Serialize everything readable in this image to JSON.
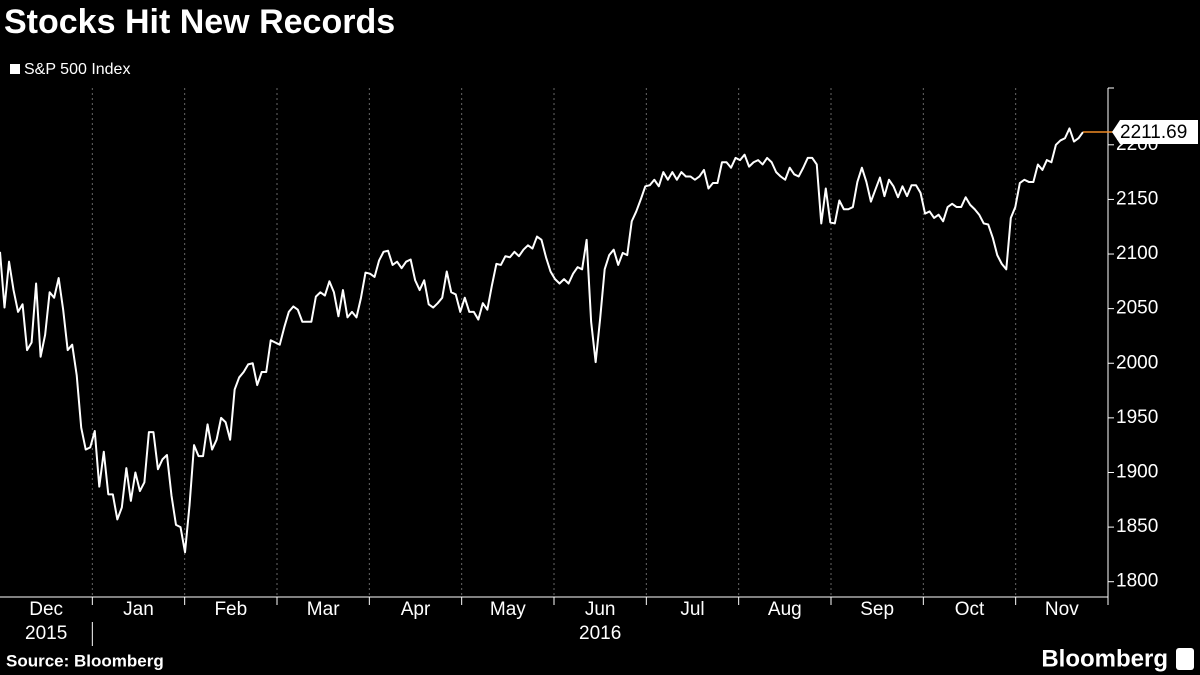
{
  "chart_data": {
    "type": "line",
    "title": "Stocks Hit New Records",
    "series": [
      {
        "name": "S&P 500 Index",
        "color": "#ffffff",
        "values": [
          2102,
          2051,
          2093,
          2067,
          2047,
          2054,
          2012,
          2019,
          2073,
          2006,
          2026,
          2065,
          2060,
          2078,
          2049,
          2012,
          2017,
          1989,
          1941,
          1921,
          1923,
          1938,
          1887,
          1919,
          1880,
          1880,
          1857,
          1868,
          1904,
          1874,
          1900,
          1883,
          1891,
          1937,
          1937,
          1903,
          1912,
          1916,
          1879,
          1852,
          1850,
          1827,
          1870,
          1925,
          1915,
          1915,
          1944,
          1921,
          1930,
          1950,
          1946,
          1930,
          1976,
          1987,
          1992,
          1999,
          2000,
          1980,
          1992,
          1992,
          2021,
          2019,
          2017,
          2033,
          2047,
          2052,
          2049,
          2038,
          2038,
          2038,
          2061,
          2065,
          2062,
          2075,
          2065,
          2043,
          2067,
          2042,
          2047,
          2042,
          2060,
          2083,
          2082,
          2079,
          2094,
          2102,
          2103,
          2090,
          2093,
          2087,
          2093,
          2095,
          2076,
          2067,
          2076,
          2054,
          2051,
          2055,
          2060,
          2084,
          2065,
          2063,
          2047,
          2060,
          2047,
          2047,
          2040,
          2055,
          2049,
          2071,
          2091,
          2090,
          2098,
          2097,
          2102,
          2098,
          2104,
          2108,
          2105,
          2116,
          2113,
          2097,
          2084,
          2077,
          2073,
          2077,
          2073,
          2082,
          2088,
          2086,
          2113,
          2038,
          2001,
          2041,
          2086,
          2099,
          2104,
          2090,
          2101,
          2099,
          2130,
          2139,
          2150,
          2162,
          2163,
          2168,
          2162,
          2175,
          2168,
          2175,
          2168,
          2175,
          2171,
          2171,
          2168,
          2171,
          2177,
          2160,
          2165,
          2165,
          2184,
          2184,
          2179,
          2188,
          2186,
          2191,
          2180,
          2184,
          2186,
          2182,
          2188,
          2184,
          2175,
          2171,
          2168,
          2179,
          2173,
          2171,
          2179,
          2188,
          2188,
          2182,
          2128,
          2160,
          2129,
          2128,
          2149,
          2141,
          2141,
          2143,
          2166,
          2179,
          2166,
          2148,
          2159,
          2170,
          2153,
          2168,
          2162,
          2152,
          2162,
          2153,
          2163,
          2163,
          2156,
          2137,
          2139,
          2133,
          2136,
          2130,
          2143,
          2146,
          2143,
          2143,
          2152,
          2145,
          2141,
          2136,
          2128,
          2127,
          2115,
          2099,
          2091,
          2086,
          2133,
          2143,
          2165,
          2168,
          2166,
          2166,
          2182,
          2177,
          2186,
          2184,
          2200,
          2204,
          2206,
          2215,
          2203,
          2206,
          2211.69
        ]
      }
    ],
    "months": [
      "Dec",
      "Jan",
      "Feb",
      "Mar",
      "Apr",
      "May",
      "Jun",
      "Jul",
      "Aug",
      "Sep",
      "Oct",
      "Nov"
    ],
    "years": [
      "2015",
      "2016"
    ],
    "ylim": [
      1786,
      2252
    ],
    "yticks": [
      1800,
      1850,
      1900,
      1950,
      2000,
      2050,
      2100,
      2150,
      2200
    ],
    "grid": true,
    "source": "Source: Bloomberg",
    "logo": "Bloomberg"
  }
}
